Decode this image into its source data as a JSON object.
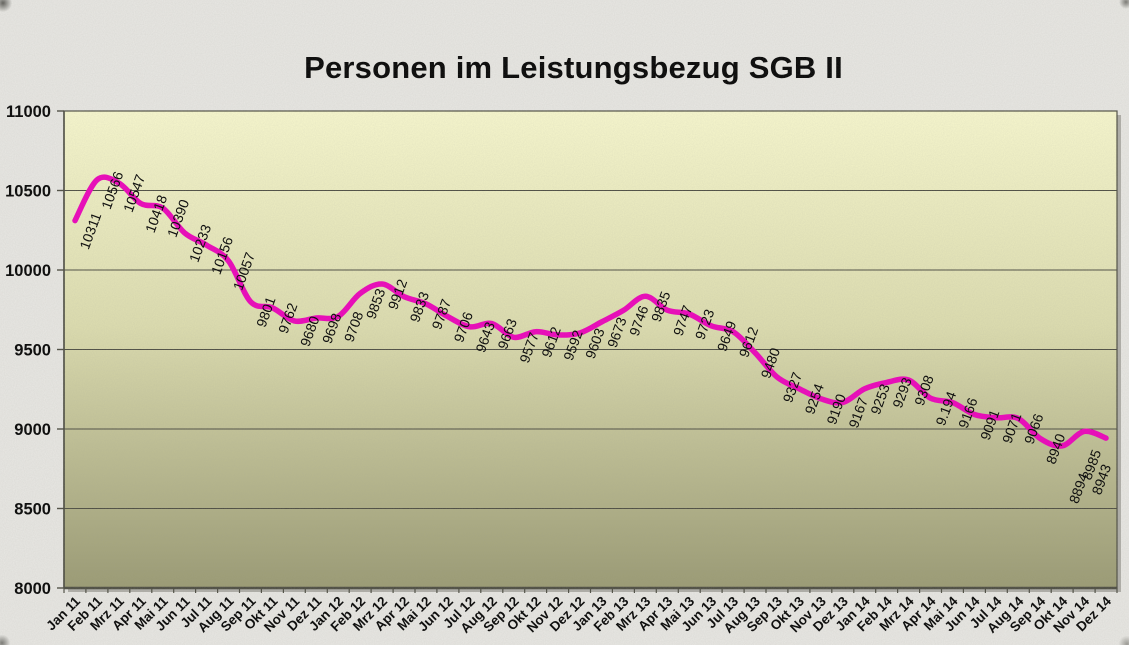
{
  "title": "Personen im Leistungsbezug SGB II",
  "colors": {
    "line": "#ee00bb",
    "plot_top": "#f9f9ce",
    "plot_mid": "#dedeaf",
    "plot_bottom": "#9a9a72",
    "grid": "#4b4b40",
    "page_bg": "#e9e8e4",
    "text": "#000000"
  },
  "chart_data": {
    "type": "line",
    "smoothed": true,
    "legend": "none",
    "grid": "horizontal",
    "title": "Personen im Leistungsbezug SGB II",
    "xlabel": "",
    "ylabel": "",
    "ylim": [
      8000,
      11000
    ],
    "y_tick_step": 500,
    "y_ticks": [
      "8000",
      "8500",
      "9000",
      "9500",
      "10000",
      "10500",
      "11000"
    ],
    "line_color": "#ee00bb",
    "categories": [
      "Jan 11",
      "Feb 11",
      "Mrz 11",
      "Apr 11",
      "Mai 11",
      "Jun 11",
      "Jul 11",
      "Aug 11",
      "Sep 11",
      "Okt 11",
      "Nov 11",
      "Dez 11",
      "Jan 12",
      "Feb 12",
      "Mrz 12",
      "Apr 12",
      "Mai 12",
      "Jun 12",
      "Jul 12",
      "Aug 12",
      "Sep 12",
      "Okt 12",
      "Nov 12",
      "Dez 12",
      "Jan 13",
      "Feb 13",
      "Mrz 13",
      "Apr 13",
      "Mai 13",
      "Jun 13",
      "Jul 13",
      "Aug 13",
      "Sep 13",
      "Okt 13",
      "Nov 13",
      "Dez 13",
      "Jan 14",
      "Feb 14",
      "Mrz 14",
      "Apr 14",
      "Mai 14",
      "Jun 14",
      "Jul 14",
      "Aug 14",
      "Sep 14",
      "Okt 14",
      "Nov 14",
      "Dez 14"
    ],
    "values": [
      10311,
      10566,
      10547,
      10418,
      10390,
      10233,
      10156,
      10057,
      9801,
      9762,
      9680,
      9698,
      9708,
      9853,
      9912,
      9833,
      9787,
      9706,
      9643,
      9663,
      9577,
      9612,
      9592,
      9603,
      9673,
      9746,
      9835,
      9747,
      9723,
      9649,
      9612,
      9480,
      9327,
      9254,
      9190,
      9167,
      9253,
      9293,
      9308,
      9194,
      9166,
      9091,
      9071,
      9066,
      8940,
      8894,
      8985,
      8943
    ],
    "point_labels": [
      "10311",
      "10566",
      "10547",
      "10418",
      "10390",
      "10233",
      "10156",
      "10057",
      "9801",
      "9762",
      "9680",
      "9698",
      "9708",
      "9853",
      "9912",
      "9833",
      "9787",
      "9706",
      "9643",
      "9663",
      "9577",
      "9612",
      "9592",
      "9603",
      "9673",
      "9746",
      "9835",
      "9747",
      "9723",
      "9649",
      "9612",
      "9480",
      "9327",
      "9254",
      "9190",
      "9167",
      "9253",
      "9293",
      "9308",
      "9.194",
      "9166",
      "9091",
      "9071",
      "9066",
      "8940",
      "8894",
      "8985",
      "8943"
    ]
  }
}
